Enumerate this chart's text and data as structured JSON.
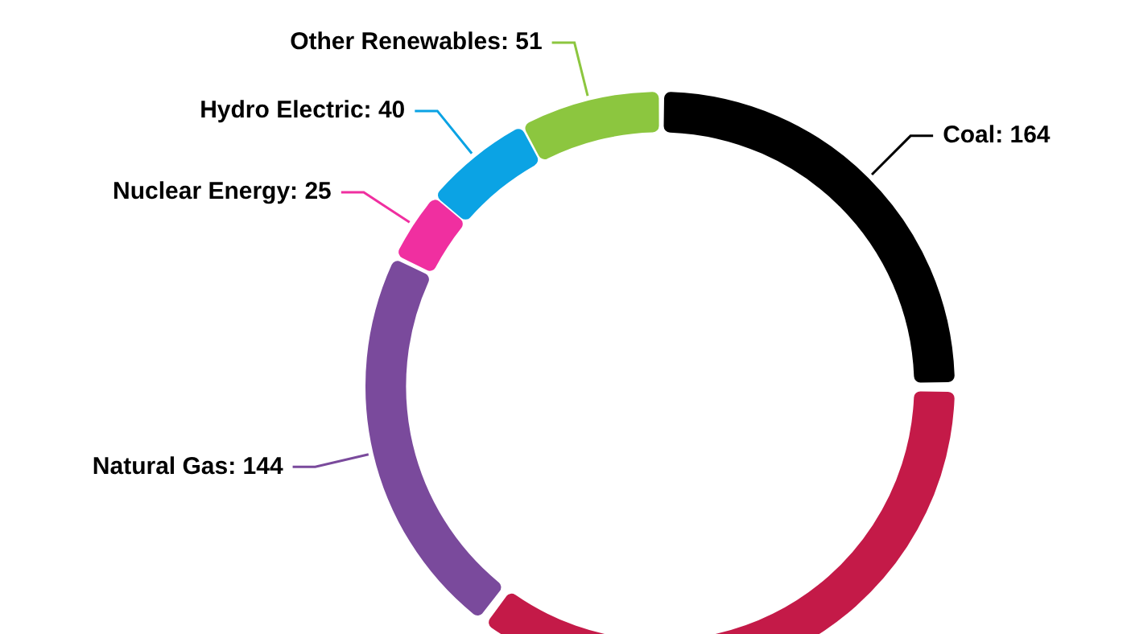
{
  "chart_data": {
    "type": "donut",
    "categories": [
      "Coal",
      null,
      "Natural Gas",
      "Nuclear Energy",
      "Hydro Electric",
      "Other Renewables"
    ],
    "values": [
      164,
      232,
      144,
      25,
      40,
      51
    ],
    "colors": [
      "#000000",
      "#c41a48",
      "#7a4a9c",
      "#f02fa0",
      "#0ba3e4",
      "#8cc63f"
    ],
    "value_labels": [
      "164",
      null,
      "144",
      "25",
      "40",
      "51"
    ]
  }
}
